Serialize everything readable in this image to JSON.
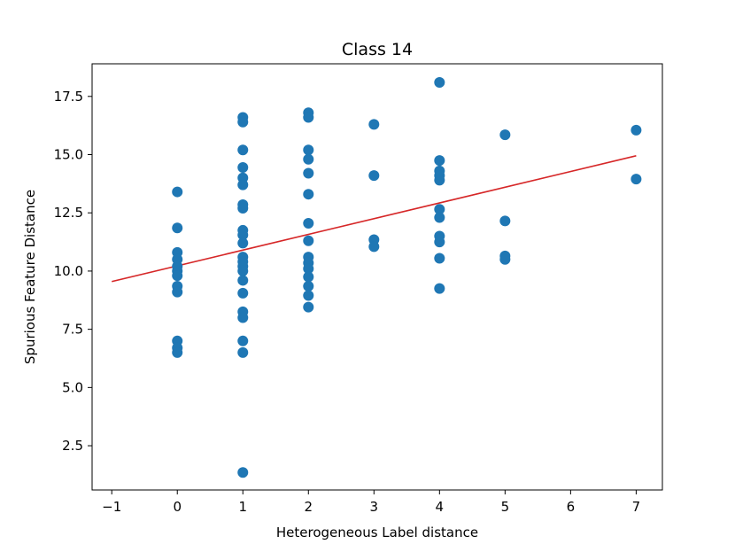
{
  "chart_data": {
    "type": "scatter",
    "title": "Class 14",
    "xlabel": "Heterogeneous Label distance",
    "ylabel": "Spurious Feature Distance",
    "xlim": [
      -1.3,
      7.4
    ],
    "ylim": [
      0.6,
      18.9
    ],
    "xticks": [
      -1,
      0,
      1,
      2,
      3,
      4,
      5,
      6,
      7
    ],
    "xtick_labels": [
      "−1",
      "0",
      "1",
      "2",
      "3",
      "4",
      "5",
      "6",
      "7"
    ],
    "yticks": [
      2.5,
      5.0,
      7.5,
      10.0,
      12.5,
      15.0,
      17.5
    ],
    "ytick_labels": [
      "2.5",
      "5.0",
      "7.5",
      "10.0",
      "12.5",
      "15.0",
      "17.5"
    ],
    "grid": false,
    "colors": {
      "points": "#1f77b4",
      "fit_line": "#d62728"
    },
    "points": [
      {
        "x": 0,
        "y": 13.4
      },
      {
        "x": 0,
        "y": 11.85
      },
      {
        "x": 0,
        "y": 10.8
      },
      {
        "x": 0,
        "y": 10.5
      },
      {
        "x": 0,
        "y": 10.2
      },
      {
        "x": 0,
        "y": 10.0
      },
      {
        "x": 0,
        "y": 9.8
      },
      {
        "x": 0,
        "y": 9.35
      },
      {
        "x": 0,
        "y": 9.1
      },
      {
        "x": 0,
        "y": 7.0
      },
      {
        "x": 0,
        "y": 6.7
      },
      {
        "x": 0,
        "y": 6.5
      },
      {
        "x": 1,
        "y": 16.6
      },
      {
        "x": 1,
        "y": 16.4
      },
      {
        "x": 1,
        "y": 15.2
      },
      {
        "x": 1,
        "y": 14.45
      },
      {
        "x": 1,
        "y": 14.0
      },
      {
        "x": 1,
        "y": 13.7
      },
      {
        "x": 1,
        "y": 12.85
      },
      {
        "x": 1,
        "y": 12.7
      },
      {
        "x": 1,
        "y": 11.75
      },
      {
        "x": 1,
        "y": 11.55
      },
      {
        "x": 1,
        "y": 11.2
      },
      {
        "x": 1,
        "y": 10.6
      },
      {
        "x": 1,
        "y": 10.4
      },
      {
        "x": 1,
        "y": 10.2
      },
      {
        "x": 1,
        "y": 10.0
      },
      {
        "x": 1,
        "y": 9.6
      },
      {
        "x": 1,
        "y": 9.05
      },
      {
        "x": 1,
        "y": 8.25
      },
      {
        "x": 1,
        "y": 8.0
      },
      {
        "x": 1,
        "y": 7.0
      },
      {
        "x": 1,
        "y": 6.5
      },
      {
        "x": 1,
        "y": 1.35
      },
      {
        "x": 2,
        "y": 16.8
      },
      {
        "x": 2,
        "y": 16.6
      },
      {
        "x": 2,
        "y": 15.2
      },
      {
        "x": 2,
        "y": 14.8
      },
      {
        "x": 2,
        "y": 14.2
      },
      {
        "x": 2,
        "y": 13.3
      },
      {
        "x": 2,
        "y": 12.05
      },
      {
        "x": 2,
        "y": 11.3
      },
      {
        "x": 2,
        "y": 10.6
      },
      {
        "x": 2,
        "y": 10.35
      },
      {
        "x": 2,
        "y": 10.1
      },
      {
        "x": 2,
        "y": 9.75
      },
      {
        "x": 2,
        "y": 9.35
      },
      {
        "x": 2,
        "y": 8.95
      },
      {
        "x": 2,
        "y": 8.45
      },
      {
        "x": 3,
        "y": 16.3
      },
      {
        "x": 3,
        "y": 14.1
      },
      {
        "x": 3,
        "y": 11.35
      },
      {
        "x": 3,
        "y": 11.05
      },
      {
        "x": 4,
        "y": 18.1
      },
      {
        "x": 4,
        "y": 14.75
      },
      {
        "x": 4,
        "y": 14.3
      },
      {
        "x": 4,
        "y": 14.1
      },
      {
        "x": 4,
        "y": 13.9
      },
      {
        "x": 4,
        "y": 12.65
      },
      {
        "x": 4,
        "y": 12.3
      },
      {
        "x": 4,
        "y": 11.5
      },
      {
        "x": 4,
        "y": 11.25
      },
      {
        "x": 4,
        "y": 10.55
      },
      {
        "x": 4,
        "y": 9.25
      },
      {
        "x": 5,
        "y": 15.85
      },
      {
        "x": 5,
        "y": 12.15
      },
      {
        "x": 5,
        "y": 10.65
      },
      {
        "x": 5,
        "y": 10.5
      },
      {
        "x": 7,
        "y": 16.05
      },
      {
        "x": 7,
        "y": 13.95
      }
    ],
    "fit_line": {
      "x": [
        -1,
        7
      ],
      "y": [
        9.55,
        14.95
      ]
    }
  }
}
